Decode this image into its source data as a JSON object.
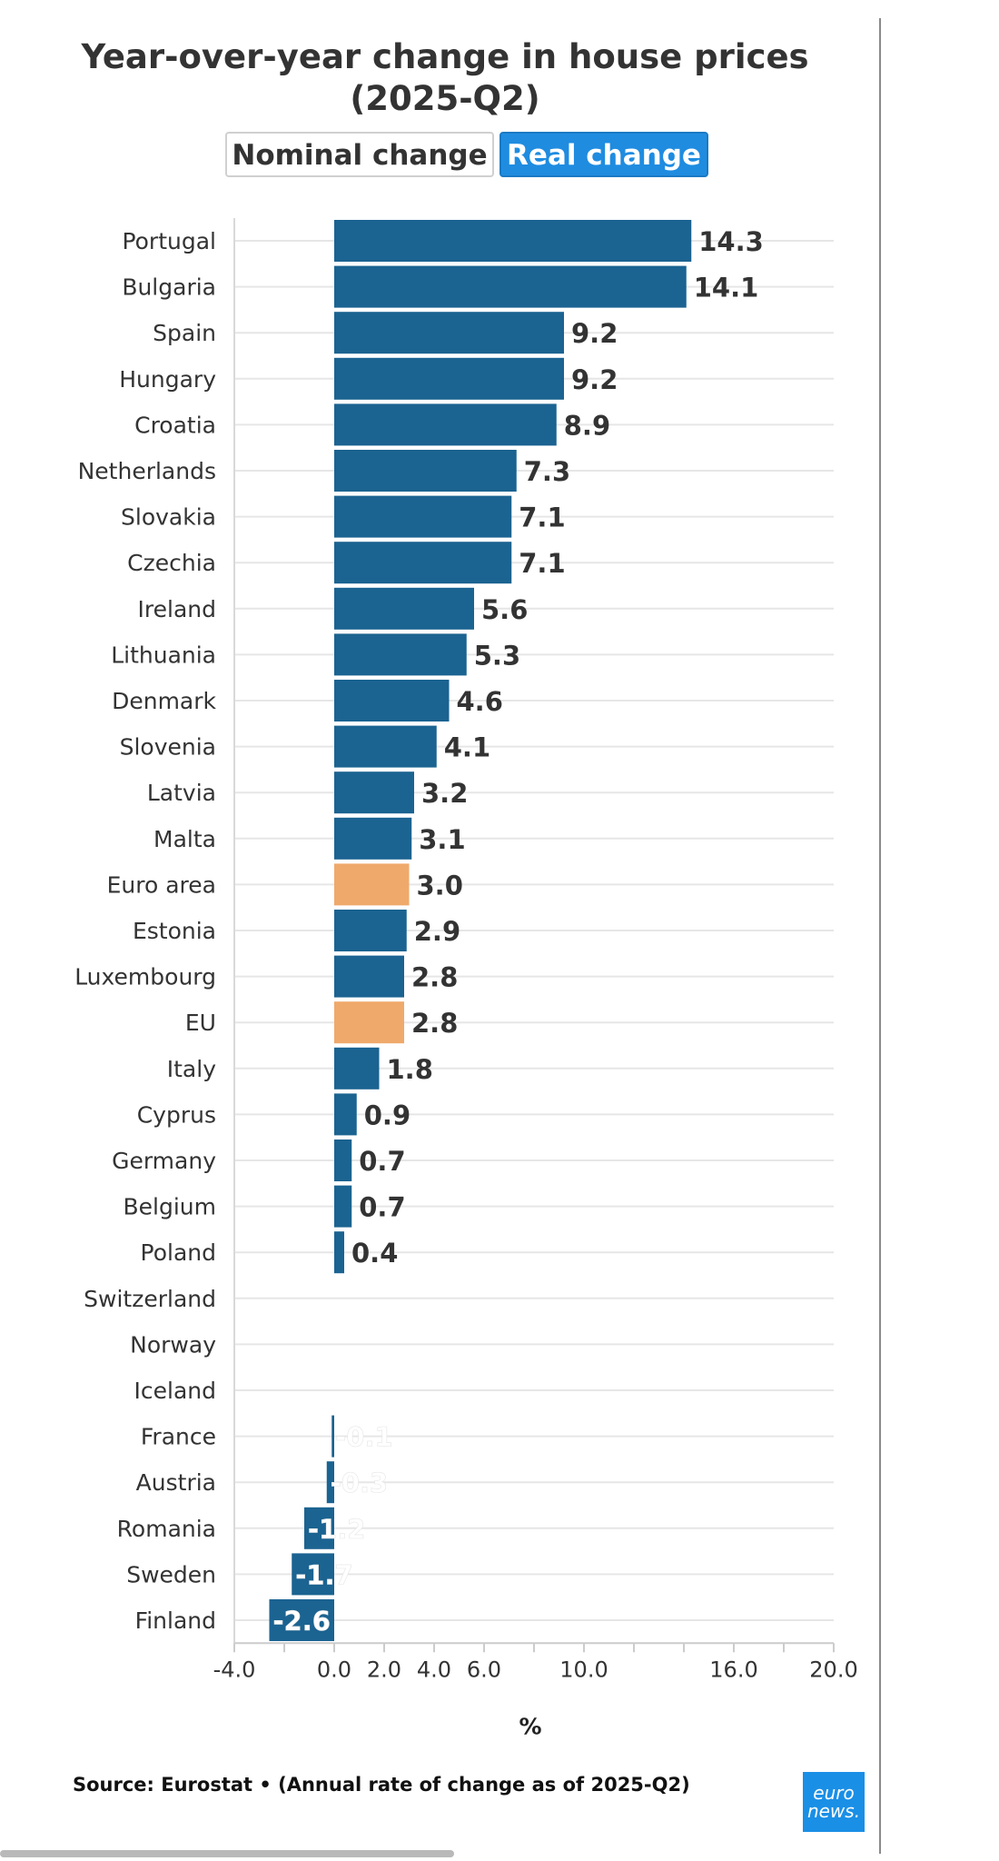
{
  "toggle": {
    "nominal_label": "Nominal change",
    "real_label": "Real change"
  },
  "source": "Source: Eurostat • (Annual rate of change as of 2025-Q2)",
  "logo": {
    "line1": "euro",
    "line2": "news."
  },
  "colors": {
    "bar": "#1b6391",
    "highlight": "#efa96b",
    "active_toggle": "#1f8ce0",
    "grid": "#e6e6e6"
  },
  "chart_data": {
    "type": "bar",
    "orientation": "horizontal",
    "title": "Year-over-year change in house prices (2025-Q2)",
    "xlabel": "%",
    "xlim": [
      -4.0,
      20.0
    ],
    "xticks": [
      {
        "value": -4.0,
        "label": "-4.0"
      },
      {
        "value": 0.0,
        "label": "0.0"
      },
      {
        "value": 2.0,
        "label": "2.0"
      },
      {
        "value": 4.0,
        "label": "4.0"
      },
      {
        "value": 6.0,
        "label": "6.0"
      },
      {
        "value": 10.0,
        "label": "10.0"
      },
      {
        "value": 16.0,
        "label": "16.0"
      },
      {
        "value": 20.0,
        "label": "20.0"
      }
    ],
    "minor_ticks": [
      -2,
      8,
      12,
      14,
      18
    ],
    "grid": true,
    "categories": [
      "Portugal",
      "Bulgaria",
      "Spain",
      "Hungary",
      "Croatia",
      "Netherlands",
      "Slovakia",
      "Czechia",
      "Ireland",
      "Lithuania",
      "Denmark",
      "Slovenia",
      "Latvia",
      "Malta",
      "Euro area",
      "Estonia",
      "Luxembourg",
      "EU",
      "Italy",
      "Cyprus",
      "Germany",
      "Belgium",
      "Poland",
      "Switzerland",
      "Norway",
      "Iceland",
      "France",
      "Austria",
      "Romania",
      "Sweden",
      "Finland"
    ],
    "values": [
      14.3,
      14.1,
      9.2,
      9.2,
      8.9,
      7.3,
      7.1,
      7.1,
      5.6,
      5.3,
      4.6,
      4.1,
      3.2,
      3.1,
      3.0,
      2.9,
      2.8,
      2.8,
      1.8,
      0.9,
      0.7,
      0.7,
      0.4,
      null,
      null,
      null,
      -0.1,
      -0.3,
      -1.2,
      -1.7,
      -2.6
    ],
    "value_labels": [
      "14.3",
      "14.1",
      "9.2",
      "9.2",
      "8.9",
      "7.3",
      "7.1",
      "7.1",
      "5.6",
      "5.3",
      "4.6",
      "4.1",
      "3.2",
      "3.1",
      "3.0",
      "2.9",
      "2.8",
      "2.8",
      "1.8",
      "0.9",
      "0.7",
      "0.7",
      "0.4",
      "",
      "",
      "",
      "-0.1",
      "-0.3",
      "-1.2",
      "-1.7",
      "-2.6"
    ],
    "highlighted": [
      "Euro area",
      "EU"
    ]
  }
}
